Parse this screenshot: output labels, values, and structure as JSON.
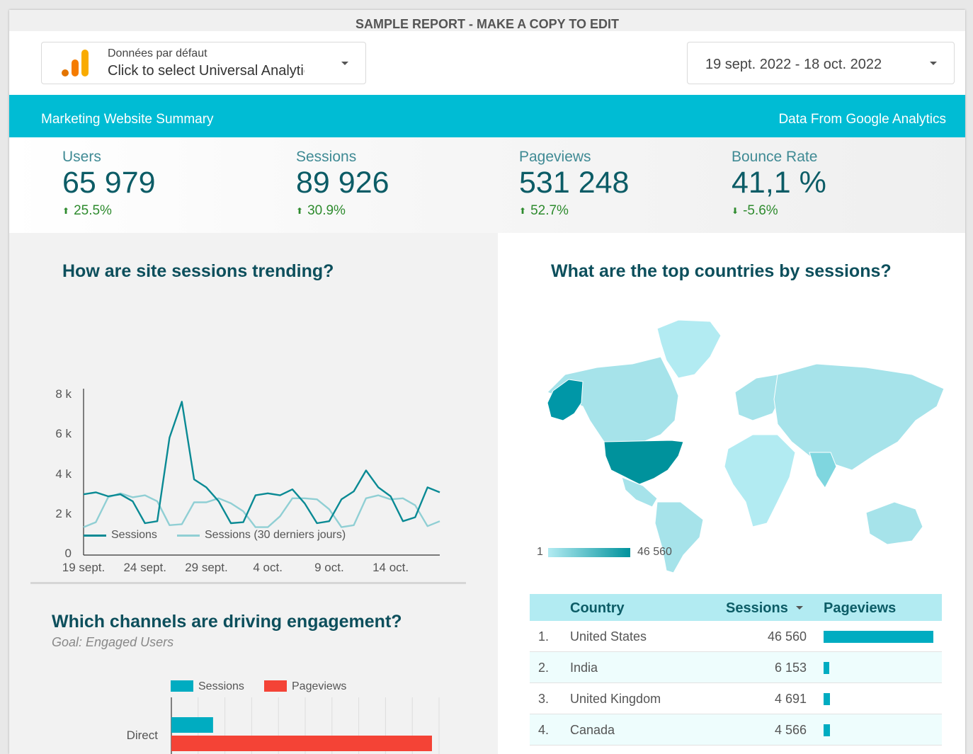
{
  "banner": "SAMPLE REPORT - MAKE A COPY TO EDIT",
  "data_source": {
    "label": "Données par défaut",
    "value": "Click to select Universal Analytics view"
  },
  "date_range": {
    "value": "19 sept. 2022 - 18 oct. 2022"
  },
  "header": {
    "title": "Marketing Website Summary",
    "source": "Data From Google Analytics"
  },
  "kpis": [
    {
      "label": "Users",
      "value": "65 979",
      "delta": "25.5%",
      "direction": "up"
    },
    {
      "label": "Sessions",
      "value": "89 926",
      "delta": "30.9%",
      "direction": "up"
    },
    {
      "label": "Pageviews",
      "value": "531 248",
      "delta": "52.7%",
      "direction": "up"
    },
    {
      "label": "Bounce Rate",
      "value": "41,1 %",
      "delta": "-5.6%",
      "direction": "down"
    }
  ],
  "colors": {
    "accent": "#00bcd4",
    "title": "#0d4f5c",
    "positive": "#2e8b2e",
    "sessions_line": "#0a8a94",
    "prev_line": "#90cfd4",
    "bar_sessions": "#00acc1",
    "bar_pageviews": "#f44336"
  },
  "sessions_chart": {
    "title": "How are site sessions trending?",
    "legend": {
      "current": "Sessions",
      "previous": "Sessions (30 derniers jours)"
    }
  },
  "map": {
    "title": "What are the top countries by sessions?",
    "legend_min": "1",
    "legend_max": "46 560"
  },
  "channels": {
    "title": "Which channels are driving engagement?",
    "goal": "Goal: Engaged Users",
    "legend": {
      "sessions": "Sessions",
      "pageviews": "Pageviews"
    }
  },
  "countries_table": {
    "headers": {
      "country": "Country",
      "sessions": "Sessions",
      "pageviews": "Pageviews"
    },
    "rows": [
      {
        "rank": "1.",
        "country": "United States",
        "sessions": "46 560",
        "pv_fraction": 1.0
      },
      {
        "rank": "2.",
        "country": "India",
        "sessions": "6 153",
        "pv_fraction": 0.05
      },
      {
        "rank": "3.",
        "country": "United Kingdom",
        "sessions": "4 691",
        "pv_fraction": 0.055
      },
      {
        "rank": "4.",
        "country": "Canada",
        "sessions": "4 566",
        "pv_fraction": 0.055
      }
    ]
  },
  "chart_data": [
    {
      "type": "line",
      "title": "How are site sessions trending?",
      "x": [
        "19 sept.",
        "20",
        "21",
        "22",
        "23",
        "24 sept.",
        "25",
        "26",
        "27",
        "28",
        "29 sept.",
        "30",
        "1 oct.",
        "2",
        "3",
        "4 oct.",
        "5",
        "6",
        "7",
        "8",
        "9 oct.",
        "10",
        "11",
        "12",
        "13",
        "14 oct.",
        "15",
        "16",
        "17",
        "18"
      ],
      "x_tick_labels": [
        "19 sept.",
        "24 sept.",
        "29 sept.",
        "4 oct.",
        "9 oct.",
        "14 oct."
      ],
      "y_tick_labels": [
        "0",
        "2 k",
        "4 k",
        "6 k",
        "8 k"
      ],
      "ylim": [
        0,
        8000
      ],
      "series": [
        {
          "name": "Sessions",
          "values": [
            3050,
            3150,
            2950,
            3050,
            2700,
            1600,
            1700,
            5900,
            7700,
            3800,
            3400,
            2700,
            1600,
            1650,
            3000,
            3100,
            3000,
            3300,
            2600,
            1600,
            1700,
            2800,
            3200,
            4250,
            3400,
            2950,
            1700,
            1900,
            3400,
            3150
          ]
        },
        {
          "name": "Sessions (30 derniers jours)",
          "values": [
            1400,
            1650,
            2900,
            3100,
            2900,
            3000,
            2700,
            1500,
            1550,
            2650,
            2650,
            2850,
            2600,
            2200,
            1400,
            1400,
            1950,
            2850,
            2850,
            2800,
            2300,
            1400,
            1500,
            2850,
            3000,
            2800,
            2850,
            2500,
            1450,
            1700
          ]
        }
      ]
    },
    {
      "type": "bar",
      "title": "Which channels are driving engagement?",
      "categories": [
        "Direct"
      ],
      "series": [
        {
          "name": "Sessions",
          "values": [
            0.16
          ]
        },
        {
          "name": "Pageviews",
          "values": [
            1.0
          ]
        }
      ]
    }
  ]
}
